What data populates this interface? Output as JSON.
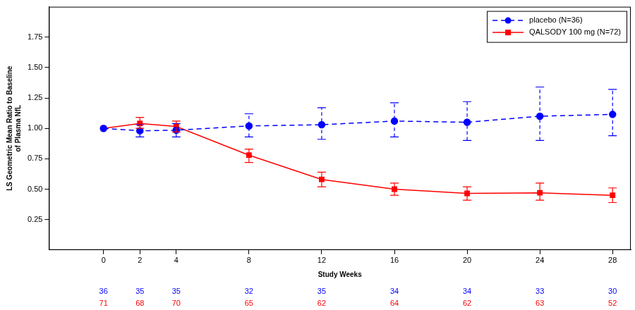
{
  "chart_data": {
    "type": "line",
    "xlabel": "Study Weeks",
    "ylabel": [
      "LS Geometric Mean Ratio to Baseline",
      "of Plasma NfL"
    ],
    "x": [
      0,
      2,
      4,
      8,
      12,
      16,
      20,
      24,
      28
    ],
    "xlim": [
      -3,
      29
    ],
    "xticks": [
      0,
      2,
      4,
      8,
      12,
      16,
      20,
      24,
      28
    ],
    "ylim": [
      0,
      2
    ],
    "yticks": [
      0.25,
      {
        "value": 0.5,
        "label": "0.50"
      },
      0.75,
      {
        "value": 1,
        "label": "1.00"
      },
      1.25,
      {
        "value": 1.5,
        "label": "1.50"
      },
      1.75
    ],
    "grid": false,
    "legend": "upper right",
    "series": [
      {
        "name": "placebo (N=36)",
        "color": "#0000ff",
        "marker": "circle",
        "line_style": "dashed",
        "values": [
          1.0,
          0.98,
          0.985,
          1.02,
          1.03,
          1.06,
          1.05,
          1.1,
          1.115
        ],
        "ci_lower": [
          null,
          0.93,
          0.93,
          0.93,
          0.91,
          0.93,
          0.9,
          0.9,
          0.94
        ],
        "ci_upper": [
          null,
          1.03,
          1.04,
          1.12,
          1.17,
          1.21,
          1.22,
          1.34,
          1.32
        ],
        "n_at_risk": [
          36,
          35,
          35,
          32,
          35,
          34,
          34,
          33,
          30
        ]
      },
      {
        "name": "QALSODY 100 mg (N=72)",
        "color": "#ff0000",
        "marker": "square",
        "line_style": "solid",
        "values": [
          1.0,
          1.04,
          1.015,
          0.78,
          0.58,
          0.5,
          0.465,
          0.47,
          0.45
        ],
        "ci_lower": [
          null,
          1.0,
          0.97,
          0.72,
          0.52,
          0.45,
          0.41,
          0.41,
          0.39
        ],
        "ci_upper": [
          null,
          1.09,
          1.06,
          0.83,
          0.64,
          0.55,
          0.52,
          0.55,
          0.51
        ],
        "n_at_risk": [
          71,
          68,
          70,
          65,
          62,
          64,
          62,
          63,
          52
        ]
      }
    ]
  }
}
